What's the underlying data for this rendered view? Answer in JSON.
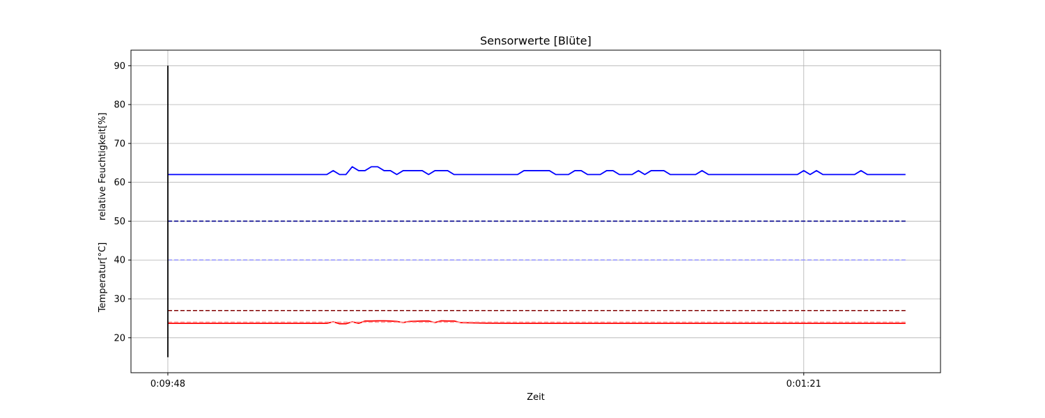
{
  "chart_data": {
    "type": "line",
    "title": "Sensorwerte [Blüte]",
    "xlabel": "Zeit",
    "ylabel_top": "relative Feuchtigkeit[%]",
    "ylabel_bottom": "Temperatur[°C]",
    "ylim": [
      11,
      94
    ],
    "xlim": [
      -5.8,
      121.5
    ],
    "grid": true,
    "x_ticks": [
      {
        "x": 0,
        "label": "0:09:48"
      },
      {
        "x": 100,
        "label": "0:01:21"
      }
    ],
    "y_ticks": [
      20,
      30,
      40,
      50,
      60,
      70,
      80,
      90
    ],
    "series": [
      {
        "color": "#0000ff",
        "style": "solid",
        "x": [
          0,
          25,
          26,
          27,
          28,
          29,
          30,
          31,
          32,
          33,
          34,
          35,
          36,
          37,
          38,
          39,
          40,
          41,
          42,
          43,
          44,
          45,
          46,
          47,
          48,
          49,
          50,
          51,
          52,
          53,
          54,
          55,
          56,
          57,
          58,
          59,
          60,
          61,
          62,
          63,
          64,
          65,
          66,
          67,
          68,
          69,
          70,
          71,
          72,
          73,
          74,
          75,
          76,
          77,
          78,
          79,
          80,
          81,
          82,
          83,
          84,
          85,
          86,
          87,
          88,
          99,
          100,
          101,
          102,
          103,
          104,
          108,
          109,
          110,
          116
        ],
        "values": [
          62,
          62,
          63,
          62,
          62,
          64,
          63,
          63,
          64,
          64,
          63,
          63,
          62,
          63,
          63,
          63,
          63,
          62,
          63,
          63,
          63,
          62,
          62,
          62,
          62,
          62,
          62,
          62,
          62,
          62,
          62,
          62,
          63,
          63,
          63,
          63,
          63,
          62,
          62,
          62,
          63,
          63,
          62,
          62,
          62,
          63,
          63,
          62,
          62,
          62,
          63,
          62,
          63,
          63,
          63,
          62,
          62,
          62,
          62,
          62,
          63,
          62,
          62,
          62,
          62,
          62,
          63,
          62,
          63,
          62,
          62,
          62,
          63,
          62,
          62
        ]
      },
      {
        "color": "#ff0000",
        "style": "solid",
        "x": [
          0,
          25,
          26,
          27,
          28,
          29,
          30,
          31,
          32,
          33,
          34,
          35,
          36,
          37,
          38,
          39,
          40,
          41,
          42,
          43,
          44,
          45,
          46,
          50,
          55,
          116
        ],
        "values": [
          23.7,
          23.7,
          24.1,
          23.6,
          23.6,
          24.1,
          23.7,
          24.3,
          24.3,
          24.35,
          24.35,
          24.3,
          24.2,
          23.9,
          24.2,
          24.25,
          24.3,
          24.3,
          23.9,
          24.35,
          24.3,
          24.3,
          23.9,
          23.75,
          23.7,
          23.7
        ]
      },
      {
        "color": "#00008b",
        "style": "dashed",
        "x": [
          0,
          116
        ],
        "values": [
          50,
          50
        ]
      },
      {
        "color": "#9999ff",
        "style": "dashed",
        "x": [
          0,
          116
        ],
        "values": [
          40,
          40
        ]
      },
      {
        "color": "#800000",
        "style": "dashed",
        "x": [
          0,
          116
        ],
        "values": [
          27,
          27
        ]
      },
      {
        "color": "#ff9999",
        "style": "dashed",
        "x": [
          0,
          116
        ],
        "values": [
          24,
          24
        ]
      },
      {
        "color": "#000000",
        "style": "solid",
        "x": [
          0,
          0
        ],
        "values": [
          15,
          90
        ]
      }
    ]
  }
}
